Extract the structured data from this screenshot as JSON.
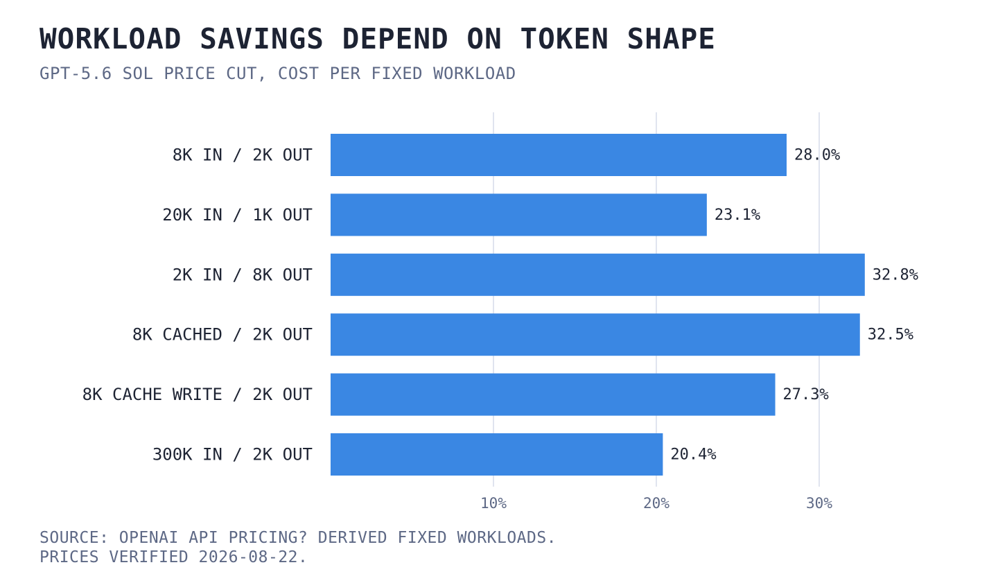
{
  "title": "WORKLOAD SAVINGS DEPEND ON TOKEN SHAPE",
  "subtitle": "GPT-5.6 SOL PRICE CUT, COST PER FIXED WORKLOAD",
  "source": {
    "line1": "SOURCE: OPENAI API PRICING? DERIVED FIXED WORKLOADS.",
    "line2": "PRICES VERIFIED 2026-08-22."
  },
  "colors": {
    "bar": "#3a87e3",
    "grid": "#d5dcea",
    "text": "#1d2333",
    "muted": "#5d6885"
  },
  "chart_data": {
    "type": "bar",
    "orientation": "horizontal",
    "categories": [
      "8K IN / 2K OUT",
      "20K IN / 1K OUT",
      "2K IN / 8K OUT",
      "8K CACHED / 2K OUT",
      "8K CACHE WRITE / 2K OUT",
      "300K IN / 2K OUT"
    ],
    "values": [
      28.0,
      23.1,
      32.8,
      32.5,
      27.3,
      20.4
    ],
    "value_labels": [
      "28.0%",
      "23.1%",
      "32.8%",
      "32.5%",
      "27.3%",
      "20.4%"
    ],
    "xticks": [
      10,
      20,
      30
    ],
    "xtick_labels": [
      "10%",
      "20%",
      "30%"
    ],
    "xlim": [
      0,
      35
    ],
    "grid": "vertical"
  }
}
